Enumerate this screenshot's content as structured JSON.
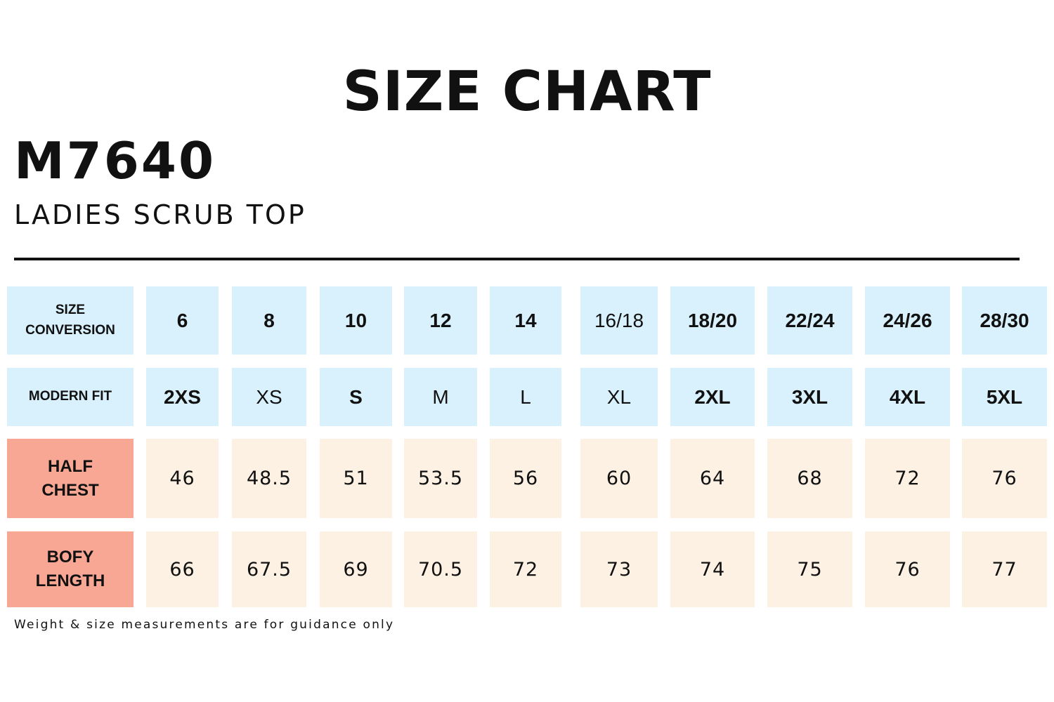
{
  "header": {
    "title": "SIZE CHART",
    "code": "M7640",
    "subtitle": "LADIES SCRUB TOP"
  },
  "colors": {
    "header_cell_bg": "#d9f1fd",
    "value_cell_bg": "#fdf1e4",
    "measure_label_bg": "#f8a795"
  },
  "table": {
    "rows": [
      {
        "label": "SIZE\nCONVERSION",
        "cells": [
          {
            "text": "6",
            "bold": true
          },
          {
            "text": "8",
            "bold": true
          },
          {
            "text": "10",
            "bold": true
          },
          {
            "text": "12",
            "bold": true
          },
          {
            "text": "14",
            "bold": true
          },
          {
            "text": "16/18",
            "bold": false
          },
          {
            "text": "18/20",
            "bold": true
          },
          {
            "text": "22/24",
            "bold": true
          },
          {
            "text": "24/26",
            "bold": true
          },
          {
            "text": "28/30",
            "bold": true
          }
        ]
      },
      {
        "label": "MODERN FIT",
        "cells": [
          {
            "text": "2XS",
            "bold": true
          },
          {
            "text": "XS",
            "bold": false
          },
          {
            "text": "S",
            "bold": true
          },
          {
            "text": "M",
            "bold": false
          },
          {
            "text": "L",
            "bold": false
          },
          {
            "text": "XL",
            "bold": false
          },
          {
            "text": "2XL",
            "bold": true
          },
          {
            "text": "3XL",
            "bold": true
          },
          {
            "text": "4XL",
            "bold": true
          },
          {
            "text": "5XL",
            "bold": true
          }
        ]
      },
      {
        "label": "HALF\nCHEST",
        "cells": [
          {
            "text": "46"
          },
          {
            "text": "48.5"
          },
          {
            "text": "51"
          },
          {
            "text": "53.5"
          },
          {
            "text": "56"
          },
          {
            "text": "60"
          },
          {
            "text": "64"
          },
          {
            "text": "68"
          },
          {
            "text": "72"
          },
          {
            "text": "76"
          }
        ]
      },
      {
        "label": "BOFY\nLENGTH",
        "cells": [
          {
            "text": "66"
          },
          {
            "text": "67.5"
          },
          {
            "text": "69"
          },
          {
            "text": "70.5"
          },
          {
            "text": "72"
          },
          {
            "text": "73"
          },
          {
            "text": "74"
          },
          {
            "text": "75"
          },
          {
            "text": "76"
          },
          {
            "text": "77"
          }
        ]
      }
    ]
  },
  "footnote": "Weight & size measurements are for guidance only"
}
